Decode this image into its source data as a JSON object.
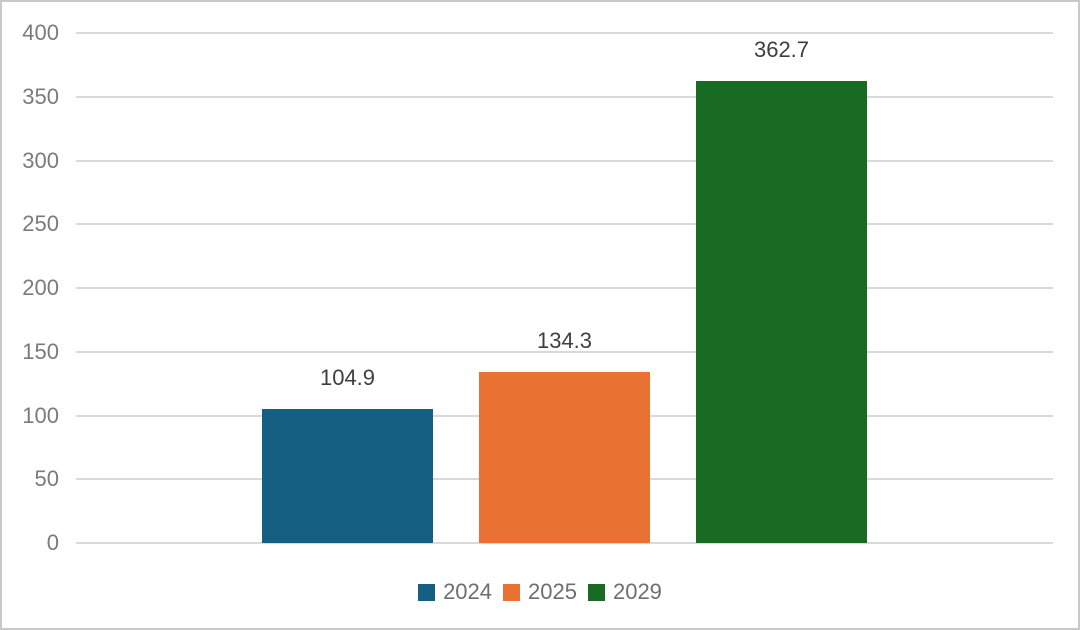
{
  "chart_data": {
    "type": "bar",
    "title": "",
    "xlabel": "",
    "ylabel": "",
    "categories": [
      "2024",
      "2025",
      "2029"
    ],
    "values": [
      104.9,
      134.3,
      362.7
    ],
    "data_labels": [
      "104.9",
      "134.3",
      "362.7"
    ],
    "series_colors": [
      "#156082",
      "#E97132",
      "#196B24"
    ],
    "ylim": [
      0,
      400
    ],
    "yticks": [
      0,
      50,
      100,
      150,
      200,
      250,
      300,
      350,
      400
    ],
    "ytick_labels": [
      "0",
      "50",
      "100",
      "150",
      "200",
      "250",
      "300",
      "350",
      "400"
    ],
    "grid": "horizontal",
    "legend_position": "bottom",
    "legend": [
      {
        "label": "2024",
        "color": "#156082"
      },
      {
        "label": "2025",
        "color": "#E97132"
      },
      {
        "label": "2029",
        "color": "#196B24"
      }
    ]
  },
  "style_colors": {
    "background": "#FFFFFF",
    "frame_border": "#C9C9C9",
    "gridline": "#D9D9D9",
    "tick_label": "#7B7B7B",
    "data_label": "#3F3F3F",
    "legend_text": "#6E6E6E"
  }
}
